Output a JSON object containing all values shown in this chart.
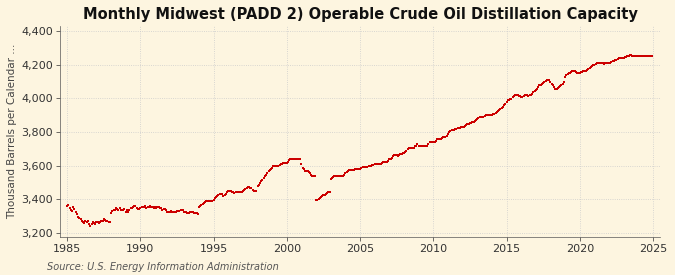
{
  "title": "Monthly Midwest (PADD 2) Operable Crude Oil Distillation Capacity",
  "ylabel": "Thousand Barrels per Calendar ...",
  "source": "Source: U.S. Energy Information Administration",
  "xlim": [
    1984.5,
    2025.5
  ],
  "ylim": [
    3175,
    4430
  ],
  "yticks": [
    3200,
    3400,
    3600,
    3800,
    4000,
    4200,
    4400
  ],
  "xticks": [
    1985,
    1990,
    1995,
    2000,
    2005,
    2010,
    2015,
    2020,
    2025
  ],
  "marker_color": "#cc0000",
  "bg_color": "#fdf5e0",
  "grid_color": "#cccccc",
  "title_fontsize": 10.5,
  "ylabel_fontsize": 7.5,
  "tick_fontsize": 8,
  "source_fontsize": 7,
  "data_years": [
    1985.0,
    1985.083,
    1985.167,
    1985.25,
    1985.333,
    1985.417,
    1985.5,
    1985.583,
    1985.667,
    1985.75,
    1985.833,
    1985.917,
    1986.0,
    1986.083,
    1986.167,
    1986.25,
    1986.333,
    1986.417,
    1986.5,
    1986.583,
    1986.667,
    1986.75,
    1986.833,
    1986.917,
    1987.0,
    1987.083,
    1987.167,
    1987.25,
    1987.333,
    1987.417,
    1987.5,
    1987.583,
    1987.667,
    1987.75,
    1987.833,
    1987.917,
    1988.0,
    1988.083,
    1988.167,
    1988.25,
    1988.333,
    1988.417,
    1988.5,
    1988.583,
    1988.667,
    1988.75,
    1988.833,
    1988.917,
    1989.0,
    1989.083,
    1989.167,
    1989.25,
    1989.333,
    1989.417,
    1989.5,
    1989.583,
    1989.667,
    1989.75,
    1989.833,
    1989.917,
    1990.0,
    1990.083,
    1990.167,
    1990.25,
    1990.333,
    1990.417,
    1990.5,
    1990.583,
    1990.667,
    1990.75,
    1990.833,
    1990.917,
    1991.0,
    1991.083,
    1991.167,
    1991.25,
    1991.333,
    1991.417,
    1991.5,
    1991.583,
    1991.667,
    1991.75,
    1991.833,
    1991.917,
    1992.0,
    1992.083,
    1992.167,
    1992.25,
    1992.333,
    1992.417,
    1992.5,
    1992.583,
    1992.667,
    1992.75,
    1992.833,
    1992.917,
    1993.0,
    1993.083,
    1993.167,
    1993.25,
    1993.333,
    1993.417,
    1993.5,
    1993.583,
    1993.667,
    1993.75,
    1993.833,
    1993.917,
    1994.0,
    1994.083,
    1994.167,
    1994.25,
    1994.333,
    1994.417,
    1994.5,
    1994.583,
    1994.667,
    1994.75,
    1994.833,
    1994.917,
    1995.0,
    1995.083,
    1995.167,
    1995.25,
    1995.333,
    1995.417,
    1995.5,
    1995.583,
    1995.667,
    1995.75,
    1995.833,
    1995.917,
    1996.0,
    1996.083,
    1996.167,
    1996.25,
    1996.333,
    1996.417,
    1996.5,
    1996.583,
    1996.667,
    1996.75,
    1996.833,
    1996.917,
    1997.0,
    1997.083,
    1997.167,
    1997.25,
    1997.333,
    1997.417,
    1997.5,
    1997.583,
    1997.667,
    1997.75,
    1997.833,
    1997.917,
    1998.0,
    1998.083,
    1998.167,
    1998.25,
    1998.333,
    1998.417,
    1998.5,
    1998.583,
    1998.667,
    1998.75,
    1998.833,
    1998.917,
    1999.0,
    1999.083,
    1999.167,
    1999.25,
    1999.333,
    1999.417,
    1999.5,
    1999.583,
    1999.667,
    1999.75,
    1999.833,
    1999.917,
    2000.0,
    2000.083,
    2000.167,
    2000.25,
    2000.333,
    2000.417,
    2000.5,
    2000.583,
    2000.667,
    2000.75,
    2000.833,
    2000.917,
    2001.0,
    2001.083,
    2001.167,
    2001.25,
    2001.333,
    2001.417,
    2001.5,
    2001.583,
    2001.667,
    2001.75,
    2001.833,
    2001.917,
    2002.0,
    2002.083,
    2002.167,
    2002.25,
    2002.333,
    2002.417,
    2002.5,
    2002.583,
    2002.667,
    2002.75,
    2002.833,
    2002.917,
    2003.0,
    2003.083,
    2003.167,
    2003.25,
    2003.333,
    2003.417,
    2003.5,
    2003.583,
    2003.667,
    2003.75,
    2003.833,
    2003.917,
    2004.0,
    2004.083,
    2004.167,
    2004.25,
    2004.333,
    2004.417,
    2004.5,
    2004.583,
    2004.667,
    2004.75,
    2004.833,
    2004.917,
    2005.0,
    2005.083,
    2005.167,
    2005.25,
    2005.333,
    2005.417,
    2005.5,
    2005.583,
    2005.667,
    2005.75,
    2005.833,
    2005.917,
    2006.0,
    2006.083,
    2006.167,
    2006.25,
    2006.333,
    2006.417,
    2006.5,
    2006.583,
    2006.667,
    2006.75,
    2006.833,
    2006.917,
    2007.0,
    2007.083,
    2007.167,
    2007.25,
    2007.333,
    2007.417,
    2007.5,
    2007.583,
    2007.667,
    2007.75,
    2007.833,
    2007.917,
    2008.0,
    2008.083,
    2008.167,
    2008.25,
    2008.333,
    2008.417,
    2008.5,
    2008.583,
    2008.667,
    2008.75,
    2008.833,
    2008.917,
    2009.0,
    2009.083,
    2009.167,
    2009.25,
    2009.333,
    2009.417,
    2009.5,
    2009.583,
    2009.667,
    2009.75,
    2009.833,
    2009.917,
    2010.0,
    2010.083,
    2010.167,
    2010.25,
    2010.333,
    2010.417,
    2010.5,
    2010.583,
    2010.667,
    2010.75,
    2010.833,
    2010.917,
    2011.0,
    2011.083,
    2011.167,
    2011.25,
    2011.333,
    2011.417,
    2011.5,
    2011.583,
    2011.667,
    2011.75,
    2011.833,
    2011.917,
    2012.0,
    2012.083,
    2012.167,
    2012.25,
    2012.333,
    2012.417,
    2012.5,
    2012.583,
    2012.667,
    2012.75,
    2012.833,
    2012.917,
    2013.0,
    2013.083,
    2013.167,
    2013.25,
    2013.333,
    2013.417,
    2013.5,
    2013.583,
    2013.667,
    2013.75,
    2013.833,
    2013.917,
    2014.0,
    2014.083,
    2014.167,
    2014.25,
    2014.333,
    2014.417,
    2014.5,
    2014.583,
    2014.667,
    2014.75,
    2014.833,
    2014.917,
    2015.0,
    2015.083,
    2015.167,
    2015.25,
    2015.333,
    2015.417,
    2015.5,
    2015.583,
    2015.667,
    2015.75,
    2015.833,
    2015.917,
    2016.0,
    2016.083,
    2016.167,
    2016.25,
    2016.333,
    2016.417,
    2016.5,
    2016.583,
    2016.667,
    2016.75,
    2016.833,
    2016.917,
    2017.0,
    2017.083,
    2017.167,
    2017.25,
    2017.333,
    2017.417,
    2017.5,
    2017.583,
    2017.667,
    2017.75,
    2017.833,
    2017.917,
    2018.0,
    2018.083,
    2018.167,
    2018.25,
    2018.333,
    2018.417,
    2018.5,
    2018.583,
    2018.667,
    2018.75,
    2018.833,
    2018.917,
    2019.0,
    2019.083,
    2019.167,
    2019.25,
    2019.333,
    2019.417,
    2019.5,
    2019.583,
    2019.667,
    2019.75,
    2019.833,
    2019.917,
    2020.0,
    2020.083,
    2020.167,
    2020.25,
    2020.333,
    2020.417,
    2020.5,
    2020.583,
    2020.667,
    2020.75,
    2020.833,
    2020.917,
    2021.0,
    2021.083,
    2021.167,
    2021.25,
    2021.333,
    2021.417,
    2021.5,
    2021.583,
    2021.667,
    2021.75,
    2021.833,
    2021.917,
    2022.0,
    2022.083,
    2022.167,
    2022.25,
    2022.333,
    2022.417,
    2022.5,
    2022.583,
    2022.667,
    2022.75,
    2022.833,
    2022.917,
    2023.0,
    2023.083,
    2023.167,
    2023.25,
    2023.333,
    2023.417,
    2023.5,
    2023.583,
    2023.667,
    2023.75,
    2023.833,
    2023.917,
    2024.0,
    2024.083,
    2024.167,
    2024.25,
    2024.333,
    2024.417,
    2024.5,
    2024.583,
    2024.667,
    2024.75,
    2024.833,
    2024.917
  ],
  "data_values": [
    3360,
    3370,
    3350,
    3340,
    3330,
    3355,
    3345,
    3325,
    3315,
    3295,
    3290,
    3285,
    3270,
    3265,
    3260,
    3275,
    3265,
    3275,
    3255,
    3245,
    3255,
    3265,
    3260,
    3255,
    3265,
    3265,
    3260,
    3265,
    3270,
    3275,
    3285,
    3280,
    3270,
    3270,
    3265,
    3265,
    3320,
    3330,
    3340,
    3340,
    3348,
    3344,
    3338,
    3348,
    3338,
    3338,
    3338,
    3342,
    3328,
    3338,
    3328,
    3338,
    3352,
    3352,
    3358,
    3362,
    3362,
    3352,
    3342,
    3342,
    3348,
    3358,
    3358,
    3358,
    3362,
    3352,
    3358,
    3358,
    3362,
    3358,
    3358,
    3352,
    3358,
    3352,
    3358,
    3358,
    3352,
    3348,
    3338,
    3342,
    3342,
    3338,
    3328,
    3328,
    3328,
    3332,
    3328,
    3328,
    3328,
    3328,
    3332,
    3332,
    3332,
    3338,
    3338,
    3338,
    3328,
    3328,
    3322,
    3318,
    3322,
    3328,
    3328,
    3328,
    3322,
    3318,
    3318,
    3312,
    3355,
    3362,
    3368,
    3372,
    3378,
    3382,
    3388,
    3392,
    3392,
    3388,
    3392,
    3388,
    3398,
    3408,
    3412,
    3418,
    3428,
    3432,
    3432,
    3432,
    3422,
    3428,
    3432,
    3442,
    3448,
    3452,
    3448,
    3442,
    3442,
    3438,
    3442,
    3442,
    3442,
    3442,
    3442,
    3442,
    3448,
    3458,
    3462,
    3468,
    3472,
    3472,
    3468,
    3468,
    3458,
    3448,
    3448,
    3448,
    3478,
    3488,
    3498,
    3508,
    3518,
    3528,
    3538,
    3548,
    3558,
    3568,
    3572,
    3578,
    3588,
    3598,
    3598,
    3598,
    3598,
    3598,
    3602,
    3608,
    3612,
    3618,
    3618,
    3618,
    3618,
    3622,
    3632,
    3638,
    3638,
    3638,
    3642,
    3642,
    3642,
    3638,
    3638,
    3638,
    3608,
    3588,
    3578,
    3568,
    3568,
    3568,
    3562,
    3558,
    3548,
    3538,
    3538,
    3538,
    3395,
    3398,
    3402,
    3408,
    3412,
    3418,
    3425,
    3428,
    3432,
    3438,
    3442,
    3445,
    3522,
    3528,
    3532,
    3538,
    3542,
    3538,
    3538,
    3538,
    3538,
    3538,
    3542,
    3548,
    3558,
    3562,
    3568,
    3572,
    3572,
    3572,
    3572,
    3572,
    3578,
    3582,
    3582,
    3582,
    3582,
    3588,
    3592,
    3592,
    3592,
    3592,
    3592,
    3598,
    3598,
    3598,
    3602,
    3602,
    3608,
    3612,
    3612,
    3612,
    3612,
    3612,
    3618,
    3622,
    3622,
    3622,
    3622,
    3628,
    3638,
    3642,
    3648,
    3658,
    3662,
    3662,
    3662,
    3658,
    3662,
    3668,
    3672,
    3678,
    3678,
    3682,
    3688,
    3698,
    3708,
    3708,
    3708,
    3708,
    3708,
    3718,
    3718,
    3728,
    3718,
    3718,
    3718,
    3718,
    3718,
    3718,
    3718,
    3718,
    3728,
    3738,
    3738,
    3742,
    3738,
    3742,
    3748,
    3758,
    3758,
    3758,
    3758,
    3762,
    3768,
    3768,
    3772,
    3778,
    3788,
    3798,
    3808,
    3812,
    3812,
    3812,
    3818,
    3818,
    3822,
    3822,
    3822,
    3828,
    3828,
    3832,
    3838,
    3842,
    3848,
    3848,
    3852,
    3852,
    3858,
    3862,
    3868,
    3872,
    3878,
    3882,
    3888,
    3892,
    3892,
    3892,
    3898,
    3902,
    3902,
    3902,
    3902,
    3902,
    3902,
    3908,
    3908,
    3912,
    3918,
    3922,
    3928,
    3938,
    3942,
    3948,
    3958,
    3968,
    3978,
    3988,
    3992,
    3998,
    3998,
    4008,
    4012,
    4018,
    4022,
    4018,
    4012,
    4012,
    4008,
    4008,
    4012,
    4018,
    4022,
    4018,
    4012,
    4018,
    4022,
    4028,
    4038,
    4042,
    4048,
    4058,
    4068,
    4078,
    4082,
    4088,
    4092,
    4098,
    4102,
    4108,
    4108,
    4108,
    4098,
    4088,
    4078,
    4068,
    4058,
    4058,
    4062,
    4068,
    4072,
    4078,
    4088,
    4098,
    4128,
    4138,
    4142,
    4148,
    4152,
    4158,
    4162,
    4162,
    4162,
    4158,
    4152,
    4152,
    4152,
    4158,
    4158,
    4162,
    4162,
    4162,
    4168,
    4172,
    4182,
    4188,
    4192,
    4198,
    4198,
    4202,
    4208,
    4212,
    4212,
    4212,
    4212,
    4208,
    4202,
    4208,
    4208,
    4208,
    4208,
    4212,
    4218,
    4222,
    4222,
    4228,
    4228,
    4232,
    4238,
    4242,
    4242,
    4242,
    4242,
    4248,
    4248,
    4252,
    4252,
    4258,
    4258,
    4252,
    4252,
    4252,
    4252,
    4252,
    4252,
    4252,
    4252,
    4252,
    4252,
    4252,
    4252,
    4252,
    4252,
    4252,
    4252,
    4252
  ]
}
